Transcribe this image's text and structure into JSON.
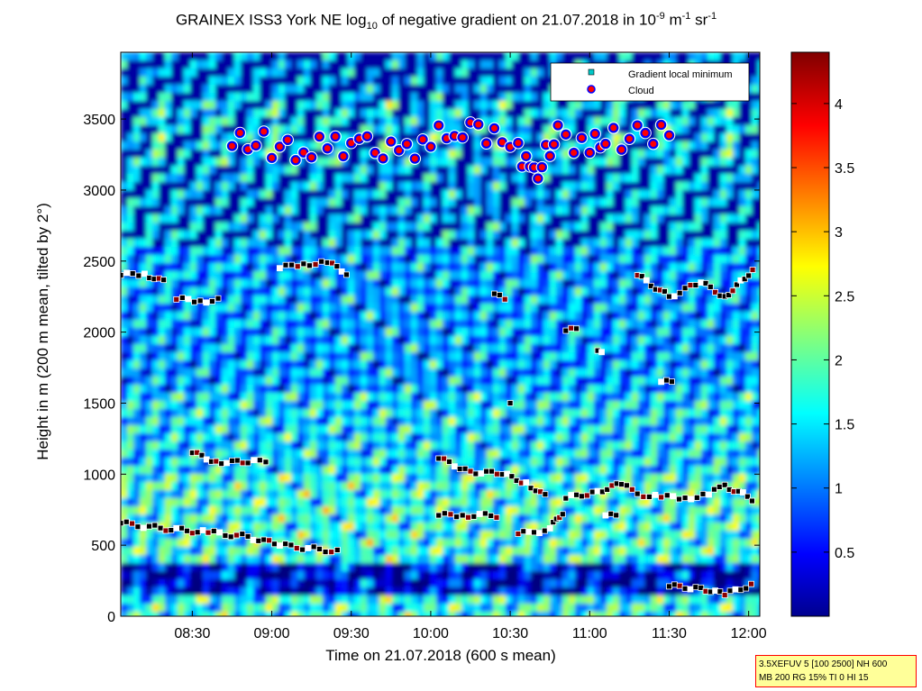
{
  "chart_data": {
    "type": "heatmap",
    "title_parts": {
      "pre": "GRAINEX ISS3 York NE log",
      "sub": "10",
      "mid": " of negative gradient on 21.07.2018 in 10",
      "sup1": "-9",
      "mid2": " m",
      "sup2": "-1",
      "mid3": " sr",
      "sup3": "-1"
    },
    "xlabel": "Time on 21.07.2018 (600 s mean)",
    "ylabel": "Height in m (200 m mean, tilted by 2°)",
    "x_ticks": [
      "08:30",
      "09:00",
      "09:30",
      "10:00",
      "10:30",
      "11:00",
      "11:30",
      "12:00"
    ],
    "x_tick_values": [
      8.5,
      9.0,
      9.5,
      10.0,
      10.5,
      11.0,
      11.5,
      12.0
    ],
    "xlim": [
      8.05,
      12.07
    ],
    "y_ticks": [
      0,
      500,
      1000,
      1500,
      2000,
      2500,
      3000,
      3500
    ],
    "ylim": [
      0,
      3970
    ],
    "colorbar": {
      "ticks": [
        0.5,
        1,
        1.5,
        2,
        2.5,
        3,
        3.5,
        4
      ],
      "tick_labels": [
        "0.5",
        "1",
        "1.5",
        "2",
        "2.5",
        "3",
        "3.5",
        "4"
      ],
      "range": [
        0,
        4.4
      ],
      "colormap": "jet"
    },
    "legend": {
      "placement": "top-right",
      "entries": [
        {
          "label": "Gradient local minimum",
          "marker": "square",
          "color": "#00c8c8"
        },
        {
          "label": "Cloud",
          "marker": "circle",
          "color": "#ff0000",
          "edge": "#0000ff"
        }
      ]
    },
    "layers": [
      {
        "name": "Gradient local minimum",
        "path": [
          [
            8.05,
            655
          ],
          [
            8.3,
            620
          ],
          [
            8.6,
            590
          ],
          [
            8.85,
            560
          ],
          [
            9.05,
            500
          ],
          [
            9.3,
            470
          ],
          [
            9.45,
            455
          ]
        ]
      },
      {
        "name": "Gradient local minimum",
        "path": [
          [
            8.5,
            1150
          ],
          [
            8.65,
            1090
          ],
          [
            8.85,
            1080
          ],
          [
            9.0,
            1100
          ]
        ]
      },
      {
        "name": "Gradient local minimum",
        "path": [
          [
            8.4,
            2230
          ],
          [
            8.55,
            2220
          ],
          [
            8.7,
            2230
          ]
        ]
      },
      {
        "name": "Gradient local minimum",
        "path": [
          [
            8.05,
            2400
          ],
          [
            8.2,
            2410
          ],
          [
            8.35,
            2340
          ]
        ]
      },
      {
        "name": "Gradient local minimum",
        "path": [
          [
            9.05,
            2450
          ],
          [
            9.2,
            2480
          ],
          [
            9.35,
            2490
          ],
          [
            9.5,
            2400
          ]
        ]
      },
      {
        "name": "Gradient local minimum",
        "path": [
          [
            10.05,
            710
          ],
          [
            10.2,
            710
          ],
          [
            10.45,
            710
          ]
        ]
      },
      {
        "name": "Gradient local minimum",
        "path": [
          [
            10.05,
            1110
          ],
          [
            10.25,
            1020
          ],
          [
            10.45,
            1000
          ],
          [
            10.6,
            940
          ],
          [
            10.75,
            820
          ]
        ]
      },
      {
        "name": "Gradient local minimum",
        "path": [
          [
            10.55,
            580
          ],
          [
            10.65,
            590
          ],
          [
            10.75,
            620
          ],
          [
            10.85,
            760
          ]
        ]
      },
      {
        "name": "Gradient local minimum",
        "path": [
          [
            10.85,
            830
          ],
          [
            11.05,
            880
          ],
          [
            11.2,
            930
          ],
          [
            11.3,
            860
          ],
          [
            11.45,
            840
          ],
          [
            11.6,
            830
          ],
          [
            11.75,
            860
          ],
          [
            11.85,
            920
          ],
          [
            12.05,
            810
          ]
        ]
      },
      {
        "name": "Gradient local minimum",
        "path": [
          [
            11.1,
            710
          ],
          [
            11.2,
            700
          ]
        ]
      },
      {
        "name": "Gradient local minimum",
        "path": [
          [
            11.5,
            210
          ],
          [
            11.7,
            200
          ],
          [
            11.85,
            150
          ],
          [
            12.05,
            240
          ]
        ]
      },
      {
        "name": "Gradient local minimum",
        "path": [
          [
            10.85,
            2010
          ],
          [
            10.95,
            2020
          ]
        ]
      },
      {
        "name": "Gradient local minimum",
        "path": [
          [
            11.3,
            2400
          ],
          [
            11.5,
            2250
          ],
          [
            11.7,
            2350
          ],
          [
            11.85,
            2250
          ],
          [
            12.0,
            2400
          ],
          [
            12.05,
            2450
          ]
        ]
      },
      {
        "name": "Gradient local minimum",
        "path": [
          [
            11.05,
            1870
          ],
          [
            11.1,
            1820
          ]
        ]
      },
      {
        "name": "Gradient local minimum",
        "path": [
          [
            11.45,
            1650
          ],
          [
            11.55,
            1640
          ]
        ]
      },
      {
        "name": "Gradient local minimum",
        "path": [
          [
            10.4,
            2270
          ],
          [
            10.5,
            2200
          ]
        ]
      },
      {
        "name": "Gradient local minimum",
        "path": [
          [
            10.5,
            1500
          ],
          [
            10.55,
            1495
          ]
        ]
      },
      {
        "name": "Cloud",
        "path": [
          [
            8.75,
            3310
          ],
          [
            8.9,
            3380
          ],
          [
            9.0,
            3300
          ],
          [
            9.2,
            3280
          ],
          [
            9.4,
            3320
          ],
          [
            9.6,
            3300
          ],
          [
            9.8,
            3250
          ],
          [
            10.0,
            3350
          ],
          [
            10.2,
            3450
          ],
          [
            10.45,
            3380
          ],
          [
            10.55,
            3300
          ],
          [
            10.65,
            3080
          ],
          [
            10.8,
            3400
          ],
          [
            11.0,
            3280
          ],
          [
            11.1,
            3400
          ],
          [
            11.2,
            3350
          ],
          [
            11.35,
            3400
          ],
          [
            11.55,
            3380
          ]
        ]
      }
    ]
  }
}
